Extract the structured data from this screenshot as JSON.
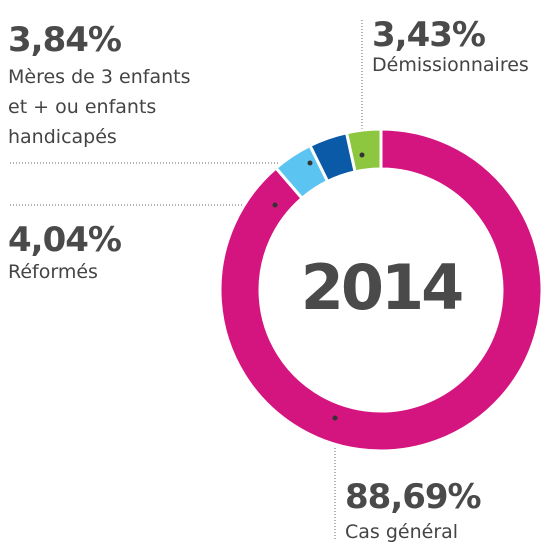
{
  "chart_data": {
    "type": "donut",
    "center_text": "2014",
    "categories": [
      "Cas général",
      "Réformés",
      "Mères de 3 enfants et + ou enfants handicapés",
      "Démissionnaires"
    ],
    "values": [
      88.69,
      4.04,
      3.84,
      3.43
    ],
    "value_labels": [
      "88,69%",
      "4,04%",
      "3,84%",
      "3,43%"
    ],
    "colors": [
      "#d4147f",
      "#5bc4f1",
      "#0a5aa8",
      "#8dc63f"
    ]
  }
}
